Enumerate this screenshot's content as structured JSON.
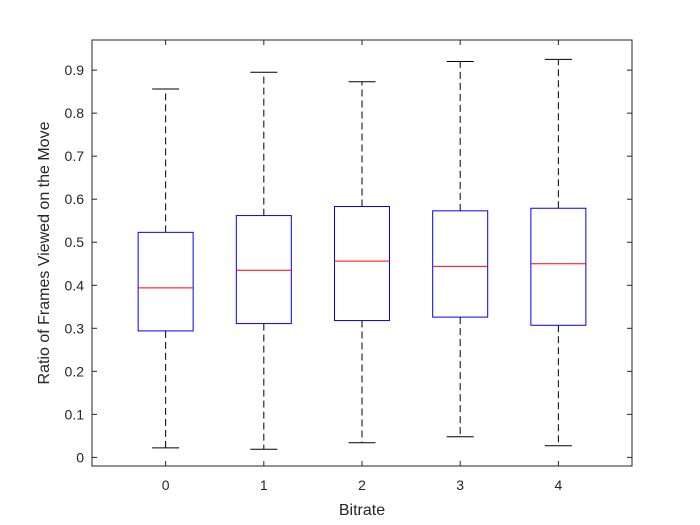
{
  "chart_data": {
    "type": "boxplot",
    "title": "",
    "xlabel": "Bitrate",
    "ylabel": "Ratio of Frames Viewed on the Move",
    "categories": [
      "0",
      "1",
      "2",
      "3",
      "4"
    ],
    "ylim": [
      -0.02,
      0.97
    ],
    "yticks": [
      "0",
      "0.1",
      "0.2",
      "0.3",
      "0.4",
      "0.5",
      "0.6",
      "0.7",
      "0.8",
      "0.9"
    ],
    "grid": false,
    "legend": "none",
    "boxes": [
      {
        "category": "0",
        "min": 0.022,
        "q1": 0.294,
        "median": 0.394,
        "q3": 0.523,
        "max": 0.856
      },
      {
        "category": "1",
        "min": 0.019,
        "q1": 0.311,
        "median": 0.435,
        "q3": 0.562,
        "max": 0.895
      },
      {
        "category": "2",
        "min": 0.034,
        "q1": 0.318,
        "median": 0.456,
        "q3": 0.583,
        "max": 0.873
      },
      {
        "category": "3",
        "min": 0.048,
        "q1": 0.326,
        "median": 0.444,
        "q3": 0.573,
        "max": 0.92
      },
      {
        "category": "4",
        "min": 0.027,
        "q1": 0.307,
        "median": 0.45,
        "q3": 0.579,
        "max": 0.925
      }
    ],
    "colors": {
      "box": "#0000ff",
      "median": "#ff0000",
      "whisker": "#000000",
      "axes": "#262626"
    }
  }
}
